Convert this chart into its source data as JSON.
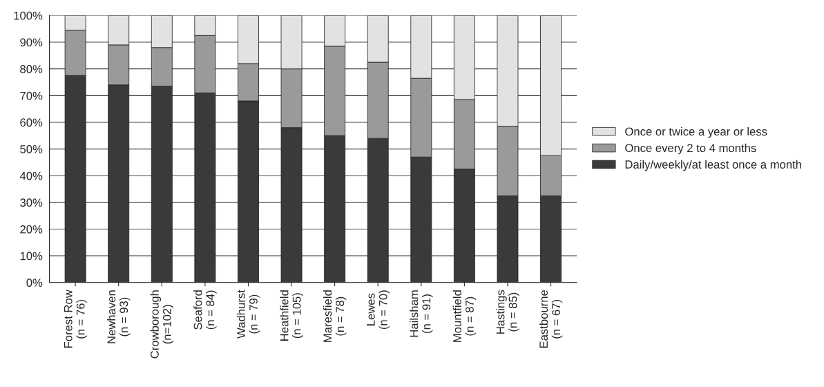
{
  "chart_data": {
    "type": "bar",
    "stacked": true,
    "categories": [
      "Forest Row\n(n = 76)",
      "Newhaven\n(n = 93)",
      "Crowborough\n(n=102)",
      "Seaford\n(n = 84)",
      "Wadhurst\n(n = 79)",
      "Heathfield\n(n = 105)",
      "Maresfield\n(n = 78)",
      "Lewes\n(n = 70)",
      "Hailsham\n(n = 91)",
      "Mountfield\n(n = 87)",
      "Hastings\n(n = 85)",
      "Eastbourne\n(n = 67)"
    ],
    "series": [
      {
        "name": "Daily/weekly/at least once a month",
        "color": "#3a3a3a",
        "values": [
          77.5,
          74,
          73.5,
          71,
          68,
          58,
          55,
          54,
          47,
          42.5,
          32.5,
          32.5
        ]
      },
      {
        "name": "Once every 2 to 4 months",
        "color": "#9a9a9a",
        "values": [
          17,
          15,
          14.5,
          21.5,
          14,
          22,
          33.5,
          28.5,
          29.5,
          26,
          26,
          15
        ]
      },
      {
        "name": "Once or twice a year or less",
        "color": "#e2e2e2",
        "values": [
          5.5,
          11,
          12,
          7.5,
          18,
          20,
          11.5,
          17.5,
          23.5,
          31.5,
          41.5,
          52.5
        ]
      }
    ],
    "ylim": [
      0,
      100
    ],
    "yticks": [
      {
        "value": 0,
        "label": "0%"
      },
      {
        "value": 10,
        "label": "10%"
      },
      {
        "value": 20,
        "label": "20%"
      },
      {
        "value": 30,
        "label": "30%"
      },
      {
        "value": 40,
        "label": "40%"
      },
      {
        "value": 50,
        "label": "50%"
      },
      {
        "value": 60,
        "label": "60%"
      },
      {
        "value": 70,
        "label": "70%"
      },
      {
        "value": 80,
        "label": "80%"
      },
      {
        "value": 90,
        "label": "90%"
      },
      {
        "value": 100,
        "label": "100%"
      }
    ],
    "grid": "y",
    "legend": "right"
  }
}
